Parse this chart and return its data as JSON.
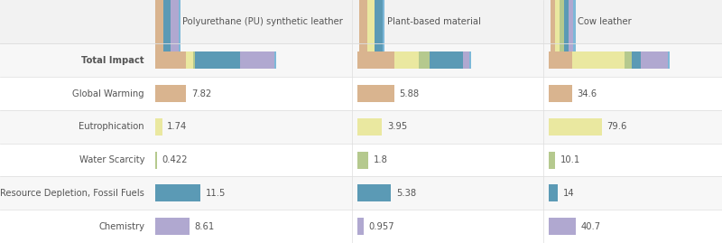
{
  "legend_labels": [
    "Polyurethane (PU) synthetic leather",
    "Plant-based material",
    "Cow leather"
  ],
  "categories": [
    "Total Impact",
    "Global Warming",
    "Eutrophication",
    "Water Scarcity",
    "Resource Depletion, Fossil Fuels",
    "Chemistry"
  ],
  "color_gw": "#d9b48f",
  "color_eu": "#eae8a0",
  "color_ws": "#b5c98e",
  "color_ff": "#5b9ab5",
  "color_ch": "#b0a8d0",
  "color_sep": "#7db8d8",
  "pu_vals": {
    "gw": 7.82,
    "eu": 1.74,
    "ws": 0.422,
    "ff": 11.5,
    "ch": 8.61
  },
  "plant_vals": {
    "gw": 5.88,
    "eu": 3.95,
    "ws": 1.8,
    "ff": 5.38,
    "ch": 0.957
  },
  "cow_vals": {
    "gw": 34.6,
    "eu": 79.6,
    "ws": 10.1,
    "ff": 14.0,
    "ch": 40.7
  },
  "bg_color": "#ffffff",
  "header_bg": "#f2f2f2",
  "row_even_bg": "#ffffff",
  "row_odd_bg": "#f7f7f7",
  "grid_color": "#dddddd",
  "text_color": "#555555",
  "label_fontsize": 7.2,
  "value_fontsize": 7.2
}
